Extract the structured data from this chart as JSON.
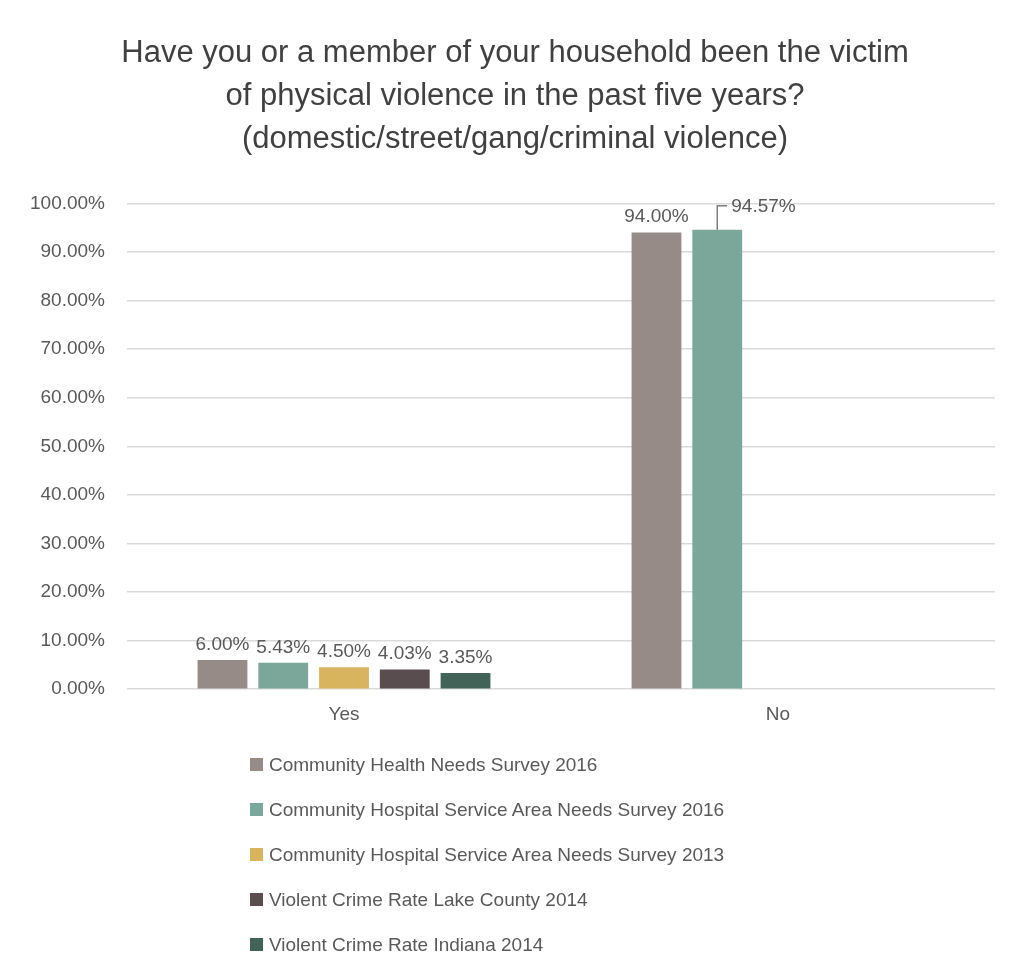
{
  "chart_data": {
    "type": "bar",
    "title": "Have you or a member of your household been the victim of physical violence in the past five years? (domestic/street/gang/criminal  violence)",
    "categories": [
      "Yes",
      "No"
    ],
    "series": [
      {
        "name": "Community Health Needs Survey 2016",
        "color": "#978b88",
        "values": [
          6.0,
          94.0
        ],
        "value_labels": [
          "6.00%",
          "94.00%"
        ]
      },
      {
        "name": "Community Hospital Service Area Needs Survey 2016",
        "color": "#7ba69a",
        "values": [
          5.43,
          94.57
        ],
        "value_labels": [
          "5.43%",
          "94.57%"
        ]
      },
      {
        "name": "Community Hospital Service Area Needs Survey 2013",
        "color": "#d9b45e",
        "values": [
          4.5,
          null
        ],
        "value_labels": [
          "4.50%",
          null
        ]
      },
      {
        "name": "Violent Crime Rate Lake County 2014",
        "color": "#594d50",
        "values": [
          4.03,
          null
        ],
        "value_labels": [
          "4.03%",
          null
        ]
      },
      {
        "name": "Violent Crime Rate Indiana 2014",
        "color": "#426358",
        "values": [
          3.35,
          null
        ],
        "value_labels": [
          "3.35%",
          null
        ]
      }
    ],
    "ylim": [
      0,
      100
    ],
    "yticks": [
      {
        "value": 0,
        "label": "0.00%"
      },
      {
        "value": 10,
        "label": "10.00%"
      },
      {
        "value": 20,
        "label": "20.00%"
      },
      {
        "value": 30,
        "label": "30.00%"
      },
      {
        "value": 40,
        "label": "40.00%"
      },
      {
        "value": 50,
        "label": "50.00%"
      },
      {
        "value": 60,
        "label": "60.00%"
      },
      {
        "value": 70,
        "label": "70.00%"
      },
      {
        "value": 80,
        "label": "80.00%"
      },
      {
        "value": 90,
        "label": "90.00%"
      },
      {
        "value": 100,
        "label": "100.00%"
      }
    ],
    "grid": "y",
    "legend": "bottom"
  }
}
